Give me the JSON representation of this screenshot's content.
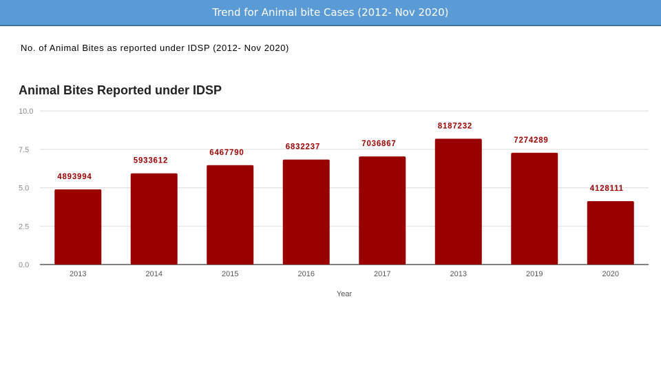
{
  "header": {
    "title": "Trend for Animal bite Cases (2012- Nov 2020)"
  },
  "subtitle": "No. of Animal Bites as reported under  IDSP (2012- Nov 2020)",
  "colors": {
    "bar": "#990000",
    "header_bg": "#5b9bd5",
    "grid": "#dddddd"
  },
  "chart_data": {
    "type": "bar",
    "title": "Animal Bites Reported under  IDSP",
    "xlabel": "Year",
    "ylabel": "",
    "ylim": [
      0,
      10
    ],
    "yticks": [
      "0.0",
      "2.5",
      "5.0",
      "7.5",
      "10.0"
    ],
    "yticks_values": [
      0,
      2.5,
      5,
      7.5,
      10
    ],
    "categories": [
      "2013",
      "2014",
      "2015",
      "2016",
      "2017",
      "2013",
      "2019",
      "2020"
    ],
    "values": [
      4.893994,
      5.933612,
      6.46779,
      6.832237,
      7.036867,
      8.187232,
      7.274289,
      4.128111
    ],
    "data_labels": [
      "4893994",
      "5933612",
      "6467790",
      "6832237",
      "7036867",
      "8187232",
      "7274289",
      "4128111"
    ]
  }
}
